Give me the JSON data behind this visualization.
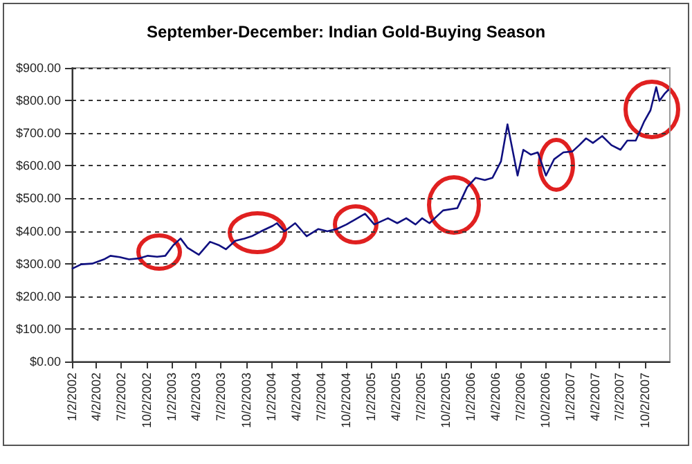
{
  "chart_data": {
    "type": "line",
    "title": "September-December: Indian Gold-Buying Season",
    "x": [
      "2002-01-02",
      "2002-02-05",
      "2002-03-17",
      "2002-04-29",
      "2002-05-23",
      "2002-06-26",
      "2002-07-30",
      "2002-09-04",
      "2002-10-07",
      "2002-11-10",
      "2002-12-10",
      "2003-01-08",
      "2003-02-04",
      "2003-03-01",
      "2003-04-12",
      "2003-05-23",
      "2003-06-26",
      "2003-07-20",
      "2003-08-23",
      "2003-09-26",
      "2003-10-23",
      "2003-11-26",
      "2004-01-08",
      "2004-01-23",
      "2004-02-20",
      "2004-03-30",
      "2004-05-11",
      "2004-06-23",
      "2004-07-26",
      "2004-08-29",
      "2004-10-04",
      "2004-12-11",
      "2005-01-14",
      "2005-03-05",
      "2005-04-08",
      "2005-05-11",
      "2005-06-14",
      "2005-07-08",
      "2005-08-04",
      "2005-09-23",
      "2005-11-14",
      "2005-12-20",
      "2006-01-20",
      "2006-02-23",
      "2006-03-23",
      "2006-04-23",
      "2006-05-17",
      "2006-06-23",
      "2006-07-14",
      "2006-08-11",
      "2006-09-05",
      "2006-10-05",
      "2006-11-04",
      "2006-12-08",
      "2007-01-10",
      "2007-02-04",
      "2007-03-01",
      "2007-03-26",
      "2007-04-29",
      "2007-06-02",
      "2007-07-05",
      "2007-07-30",
      "2007-08-30",
      "2007-09-29",
      "2007-10-23",
      "2007-11-13",
      "2007-11-25",
      "2007-12-13",
      "2007-12-29"
    ],
    "series": [
      {
        "color": "#101080",
        "values": [
          284,
          298,
          300,
          313,
          324,
          320,
          313,
          316,
          324,
          321,
          324,
          356,
          377,
          349,
          327,
          367,
          356,
          344,
          370,
          377,
          384,
          399,
          416,
          424,
          399,
          424,
          384,
          406,
          399,
          406,
          420,
          453,
          420,
          439,
          424,
          439,
          420,
          439,
          424,
          463,
          470,
          534,
          563,
          556,
          563,
          613,
          727,
          570,
          649,
          634,
          641,
          570,
          620,
          641,
          644,
          663,
          684,
          670,
          691,
          663,
          649,
          677,
          677,
          734,
          770,
          841,
          799,
          820,
          834
        ]
      }
    ],
    "xlim": [
      "2002-01-02",
      "2008-01-02"
    ],
    "xticks": [
      {
        "value": "2002-01-02",
        "label": "1/2/2002"
      },
      {
        "value": "2002-04-02",
        "label": "4/2/2002"
      },
      {
        "value": "2002-07-02",
        "label": "7/2/2002"
      },
      {
        "value": "2002-10-02",
        "label": "10/2/2002"
      },
      {
        "value": "2003-01-02",
        "label": "1/2/2003"
      },
      {
        "value": "2003-04-02",
        "label": "4/2/2003"
      },
      {
        "value": "2003-07-02",
        "label": "7/2/2003"
      },
      {
        "value": "2003-10-02",
        "label": "10/2/2003"
      },
      {
        "value": "2004-01-02",
        "label": "1/2/2004"
      },
      {
        "value": "2004-04-02",
        "label": "4/2/2004"
      },
      {
        "value": "2004-07-02",
        "label": "7/2/2004"
      },
      {
        "value": "2004-10-02",
        "label": "10/2/2004"
      },
      {
        "value": "2005-01-02",
        "label": "1/2/2005"
      },
      {
        "value": "2005-04-02",
        "label": "4/2/2005"
      },
      {
        "value": "2005-07-02",
        "label": "7/2/2005"
      },
      {
        "value": "2005-10-02",
        "label": "10/2/2005"
      },
      {
        "value": "2006-01-02",
        "label": "1/2/2006"
      },
      {
        "value": "2006-04-02",
        "label": "4/2/2006"
      },
      {
        "value": "2006-07-02",
        "label": "7/2/2006"
      },
      {
        "value": "2006-10-02",
        "label": "10/2/2006"
      },
      {
        "value": "2007-01-02",
        "label": "1/2/2007"
      },
      {
        "value": "2007-04-02",
        "label": "4/2/2007"
      },
      {
        "value": "2007-07-02",
        "label": "7/2/2007"
      },
      {
        "value": "2007-10-02",
        "label": "10/2/2007"
      }
    ],
    "ylim": [
      0,
      900
    ],
    "yticks": [
      {
        "value": 0,
        "label": "$0.00"
      },
      {
        "value": 100,
        "label": "$100.00"
      },
      {
        "value": 200,
        "label": "$200.00"
      },
      {
        "value": 300,
        "label": "$300.00"
      },
      {
        "value": 400,
        "label": "$400.00"
      },
      {
        "value": 500,
        "label": "$500.00"
      },
      {
        "value": 600,
        "label": "$600.00"
      },
      {
        "value": 700,
        "label": "$700.00"
      },
      {
        "value": 800,
        "label": "$800.00"
      },
      {
        "value": 900,
        "label": "$900.00"
      }
    ],
    "grid": "y",
    "marker": "none",
    "line_style": "solid"
  }
}
